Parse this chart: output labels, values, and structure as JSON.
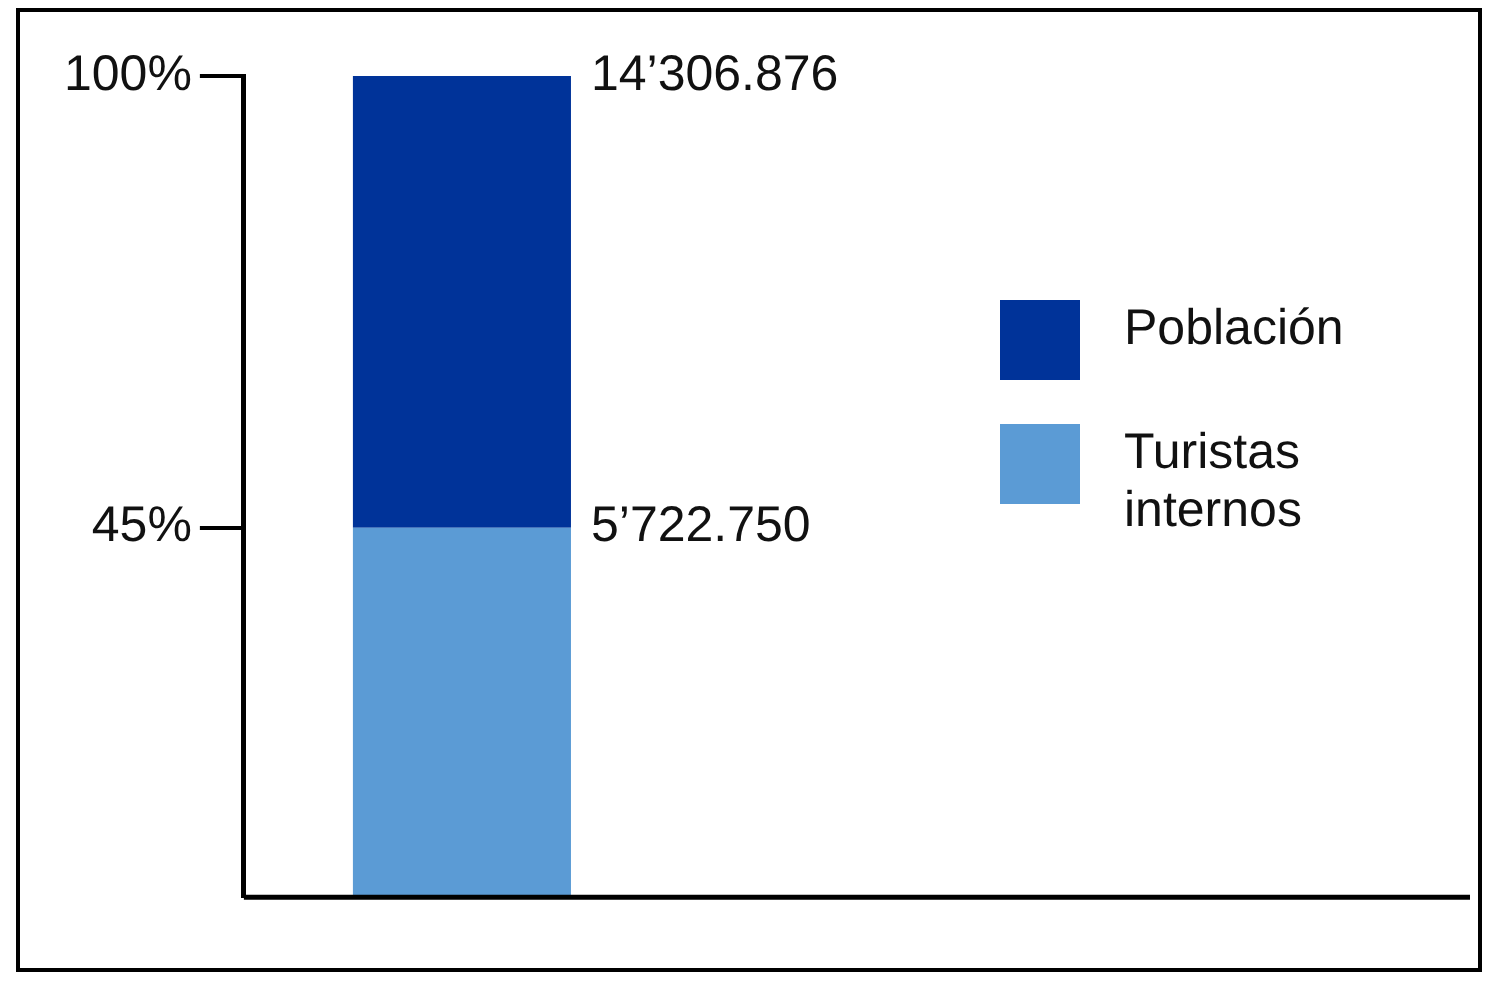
{
  "chart_data": {
    "type": "bar",
    "stacked": true,
    "categories": [
      null
    ],
    "series": [
      {
        "name": "Turistas internos",
        "color": "#5b9bd5",
        "values": [
          45
        ]
      },
      {
        "name": "Población",
        "color": "#003399",
        "values": [
          55
        ]
      }
    ],
    "ylim": [
      0,
      100
    ],
    "yticks": [
      {
        "value": 45,
        "label": "45%"
      },
      {
        "value": 100,
        "label": "100%"
      }
    ],
    "annotations": [
      "14’306.876",
      "5’722.750"
    ],
    "grid": false,
    "legend": "right"
  }
}
